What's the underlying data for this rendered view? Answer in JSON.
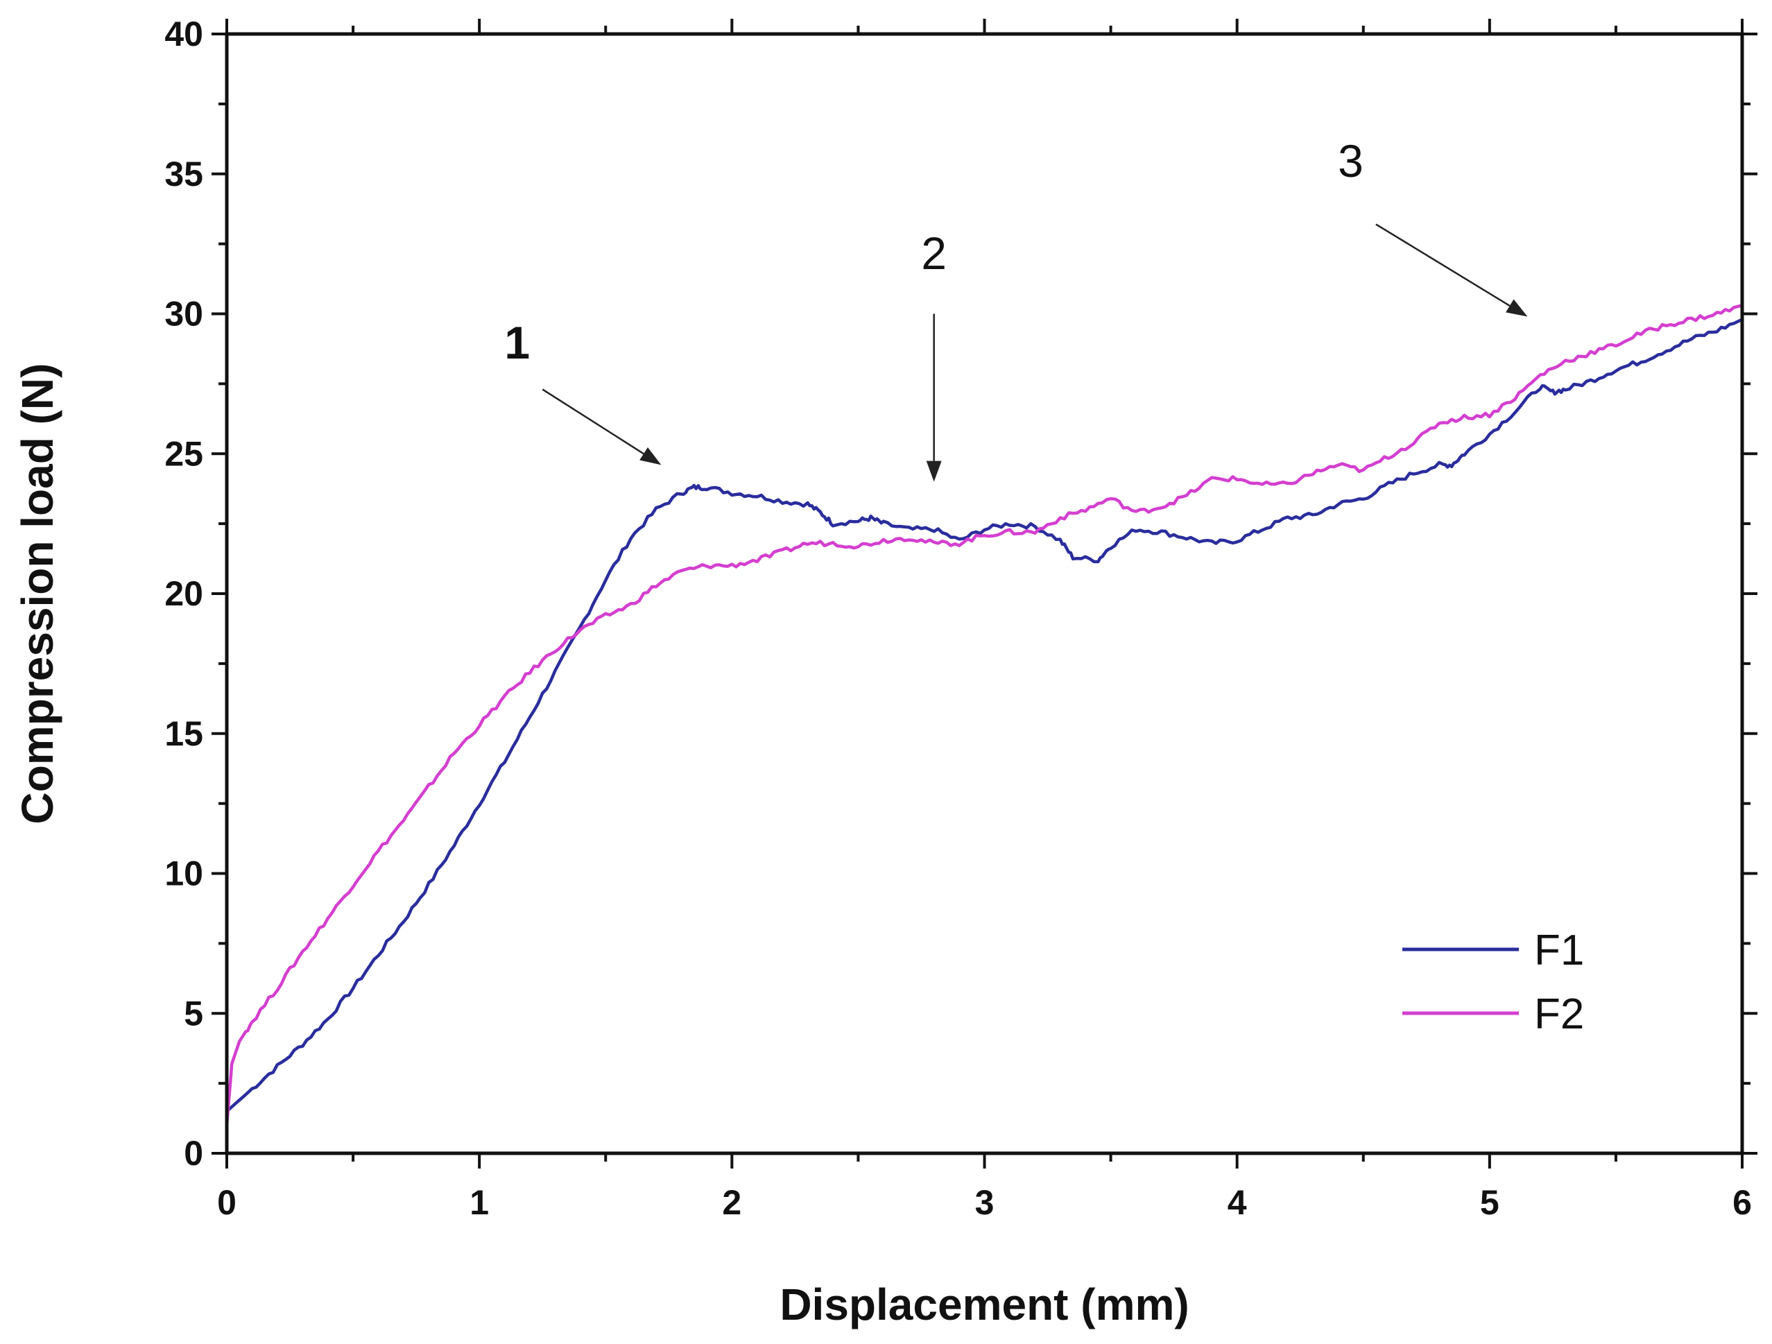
{
  "chart_data": {
    "type": "line",
    "title": "",
    "xlabel": "Displacement (mm)",
    "ylabel": "Compression load (N)",
    "xlim": [
      0,
      6
    ],
    "ylim": [
      0,
      40
    ],
    "xticks": [
      0,
      1,
      2,
      3,
      4,
      5,
      6
    ],
    "yticks": [
      0,
      5,
      10,
      15,
      20,
      25,
      30,
      35,
      40
    ],
    "xtick_labels": [
      "0",
      "1",
      "2",
      "3",
      "4",
      "5",
      "6"
    ],
    "ytick_labels": [
      "0",
      "5",
      "10",
      "15",
      "20",
      "25",
      "30",
      "35",
      "40"
    ],
    "grid": false,
    "legend_position": "bottom-right",
    "series": [
      {
        "name": "F1",
        "color": "#2a2d9c",
        "points": [
          [
            0,
            1.5
          ],
          [
            0.1,
            2.3
          ],
          [
            0.2,
            3.1
          ],
          [
            0.3,
            3.9
          ],
          [
            0.4,
            4.8
          ],
          [
            0.5,
            5.9
          ],
          [
            0.6,
            7.1
          ],
          [
            0.7,
            8.3
          ],
          [
            0.8,
            9.6
          ],
          [
            0.9,
            11.0
          ],
          [
            1.0,
            12.5
          ],
          [
            1.1,
            14.0
          ],
          [
            1.2,
            15.6
          ],
          [
            1.3,
            17.2
          ],
          [
            1.4,
            18.8
          ],
          [
            1.5,
            20.5
          ],
          [
            1.6,
            22.0
          ],
          [
            1.7,
            23.0
          ],
          [
            1.8,
            23.6
          ],
          [
            1.85,
            23.8
          ],
          [
            1.9,
            23.8
          ],
          [
            2.0,
            23.6
          ],
          [
            2.1,
            23.5
          ],
          [
            2.2,
            23.3
          ],
          [
            2.3,
            23.2
          ],
          [
            2.35,
            22.9
          ],
          [
            2.4,
            22.5
          ],
          [
            2.5,
            22.6
          ],
          [
            2.55,
            22.7
          ],
          [
            2.6,
            22.5
          ],
          [
            2.7,
            22.3
          ],
          [
            2.8,
            22.3
          ],
          [
            2.9,
            21.9
          ],
          [
            3.0,
            22.3
          ],
          [
            3.1,
            22.5
          ],
          [
            3.2,
            22.4
          ],
          [
            3.3,
            21.9
          ],
          [
            3.35,
            21.3
          ],
          [
            3.45,
            21.2
          ],
          [
            3.5,
            21.7
          ],
          [
            3.6,
            22.3
          ],
          [
            3.7,
            22.2
          ],
          [
            3.8,
            22.0
          ],
          [
            3.9,
            21.8
          ],
          [
            4.0,
            21.9
          ],
          [
            4.1,
            22.3
          ],
          [
            4.2,
            22.7
          ],
          [
            4.3,
            22.8
          ],
          [
            4.4,
            23.2
          ],
          [
            4.5,
            23.4
          ],
          [
            4.6,
            23.9
          ],
          [
            4.7,
            24.3
          ],
          [
            4.8,
            24.6
          ],
          [
            4.85,
            24.6
          ],
          [
            4.9,
            25.0
          ],
          [
            5.0,
            25.7
          ],
          [
            5.1,
            26.5
          ],
          [
            5.2,
            27.4
          ],
          [
            5.25,
            27.2
          ],
          [
            5.3,
            27.3
          ],
          [
            5.4,
            27.6
          ],
          [
            5.5,
            28.0
          ],
          [
            5.6,
            28.3
          ],
          [
            5.7,
            28.7
          ],
          [
            5.8,
            29.1
          ],
          [
            5.9,
            29.4
          ],
          [
            6.0,
            29.8
          ]
        ]
      },
      {
        "name": "F2",
        "color": "#d43fd0",
        "points": [
          [
            0,
            1.0
          ],
          [
            0.02,
            3.2
          ],
          [
            0.05,
            4.0
          ],
          [
            0.1,
            4.7
          ],
          [
            0.2,
            5.9
          ],
          [
            0.3,
            7.2
          ],
          [
            0.4,
            8.4
          ],
          [
            0.5,
            9.6
          ],
          [
            0.6,
            10.8
          ],
          [
            0.7,
            11.9
          ],
          [
            0.8,
            13.1
          ],
          [
            0.9,
            14.3
          ],
          [
            1.0,
            15.3
          ],
          [
            1.1,
            16.3
          ],
          [
            1.2,
            17.2
          ],
          [
            1.3,
            18.0
          ],
          [
            1.4,
            18.7
          ],
          [
            1.5,
            19.2
          ],
          [
            1.6,
            19.6
          ],
          [
            1.7,
            20.3
          ],
          [
            1.8,
            20.8
          ],
          [
            1.9,
            21.0
          ],
          [
            2.0,
            21.0
          ],
          [
            2.1,
            21.2
          ],
          [
            2.2,
            21.5
          ],
          [
            2.3,
            21.8
          ],
          [
            2.4,
            21.8
          ],
          [
            2.5,
            21.7
          ],
          [
            2.6,
            21.9
          ],
          [
            2.7,
            22.0
          ],
          [
            2.8,
            21.8
          ],
          [
            2.9,
            21.8
          ],
          [
            3.0,
            22.1
          ],
          [
            3.1,
            22.2
          ],
          [
            3.2,
            22.2
          ],
          [
            3.3,
            22.7
          ],
          [
            3.4,
            23.0
          ],
          [
            3.5,
            23.4
          ],
          [
            3.6,
            22.9
          ],
          [
            3.7,
            23.1
          ],
          [
            3.8,
            23.5
          ],
          [
            3.9,
            24.1
          ],
          [
            4.0,
            24.1
          ],
          [
            4.1,
            23.9
          ],
          [
            4.2,
            23.9
          ],
          [
            4.3,
            24.3
          ],
          [
            4.4,
            24.6
          ],
          [
            4.5,
            24.4
          ],
          [
            4.6,
            24.9
          ],
          [
            4.7,
            25.4
          ],
          [
            4.8,
            26.1
          ],
          [
            4.9,
            26.3
          ],
          [
            5.0,
            26.4
          ],
          [
            5.1,
            27.0
          ],
          [
            5.2,
            27.8
          ],
          [
            5.3,
            28.3
          ],
          [
            5.4,
            28.6
          ],
          [
            5.5,
            28.9
          ],
          [
            5.6,
            29.3
          ],
          [
            5.7,
            29.6
          ],
          [
            5.8,
            29.8
          ],
          [
            5.9,
            30.0
          ],
          [
            6.0,
            30.3
          ]
        ]
      }
    ],
    "annotations": [
      {
        "label": "1",
        "bold": true,
        "text_at": [
          1.15,
          28.4
        ],
        "arrow_from": [
          1.25,
          27.3
        ],
        "arrow_to": [
          1.72,
          24.6
        ]
      },
      {
        "label": "2",
        "bold": false,
        "text_at": [
          2.8,
          31.6
        ],
        "arrow_from": [
          2.8,
          30.0
        ],
        "arrow_to": [
          2.8,
          24.0
        ]
      },
      {
        "label": "3",
        "bold": false,
        "text_at": [
          4.45,
          34.9
        ],
        "arrow_from": [
          4.55,
          33.2
        ],
        "arrow_to": [
          5.15,
          29.9
        ]
      }
    ]
  }
}
